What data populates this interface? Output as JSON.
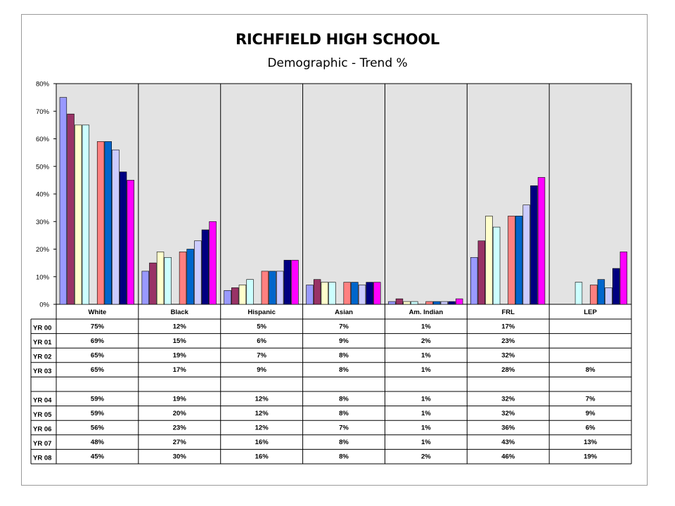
{
  "chart_data": {
    "type": "bar",
    "title": "RICHFIELD HIGH SCHOOL",
    "subtitle": "Demographic - Trend %",
    "categories": [
      "White",
      "Black",
      "Hispanic",
      "Asian",
      "Am. Indian",
      "FRL",
      "LEP"
    ],
    "y_ticks": [
      "0%",
      "10%",
      "20%",
      "30%",
      "40%",
      "50%",
      "60%",
      "70%",
      "80%"
    ],
    "ylim": [
      0,
      80
    ],
    "grid": false,
    "series": [
      {
        "name": "YR 00",
        "color": "#9999ff",
        "values": [
          75,
          12,
          5,
          7,
          1,
          17,
          null
        ],
        "labels": [
          "75%",
          "12%",
          "5%",
          "7%",
          "1%",
          "17%",
          ""
        ]
      },
      {
        "name": "YR 01",
        "color": "#993366",
        "values": [
          69,
          15,
          6,
          9,
          2,
          23,
          null
        ],
        "labels": [
          "69%",
          "15%",
          "6%",
          "9%",
          "2%",
          "23%",
          ""
        ]
      },
      {
        "name": "YR 02",
        "color": "#ffffcc",
        "values": [
          65,
          19,
          7,
          8,
          1,
          32,
          null
        ],
        "labels": [
          "65%",
          "19%",
          "7%",
          "8%",
          "1%",
          "32%",
          ""
        ]
      },
      {
        "name": "YR 03",
        "color": "#ccffff",
        "values": [
          65,
          17,
          9,
          8,
          1,
          28,
          8
        ],
        "labels": [
          "65%",
          "17%",
          "9%",
          "8%",
          "1%",
          "28%",
          "8%"
        ]
      },
      {
        "name": "",
        "color": "#ffffff",
        "values": [
          null,
          null,
          null,
          null,
          null,
          null,
          null
        ],
        "labels": [
          "",
          "",
          "",
          "",
          "",
          "",
          ""
        ]
      },
      {
        "name": "YR 04",
        "color": "#ff8080",
        "values": [
          59,
          19,
          12,
          8,
          1,
          32,
          7
        ],
        "labels": [
          "59%",
          "19%",
          "12%",
          "8%",
          "1%",
          "32%",
          "7%"
        ]
      },
      {
        "name": "YR 05",
        "color": "#0066cc",
        "values": [
          59,
          20,
          12,
          8,
          1,
          32,
          9
        ],
        "labels": [
          "59%",
          "20%",
          "12%",
          "8%",
          "1%",
          "32%",
          "9%"
        ]
      },
      {
        "name": "YR 06",
        "color": "#ccccff",
        "values": [
          56,
          23,
          12,
          7,
          1,
          36,
          6
        ],
        "labels": [
          "56%",
          "23%",
          "12%",
          "7%",
          "1%",
          "36%",
          "6%"
        ]
      },
      {
        "name": "YR 07",
        "color": "#000080",
        "values": [
          48,
          27,
          16,
          8,
          1,
          43,
          13
        ],
        "labels": [
          "48%",
          "27%",
          "16%",
          "8%",
          "1%",
          "43%",
          "13%"
        ]
      },
      {
        "name": "YR 08",
        "color": "#ff00ff",
        "values": [
          45,
          30,
          16,
          8,
          2,
          46,
          19
        ],
        "labels": [
          "45%",
          "30%",
          "16%",
          "8%",
          "2%",
          "46%",
          "19%"
        ]
      }
    ]
  },
  "colors": {
    "plot_background": "#e3e3e3",
    "bar_outline": "#000000",
    "frame_border": "#9a9a9a"
  }
}
